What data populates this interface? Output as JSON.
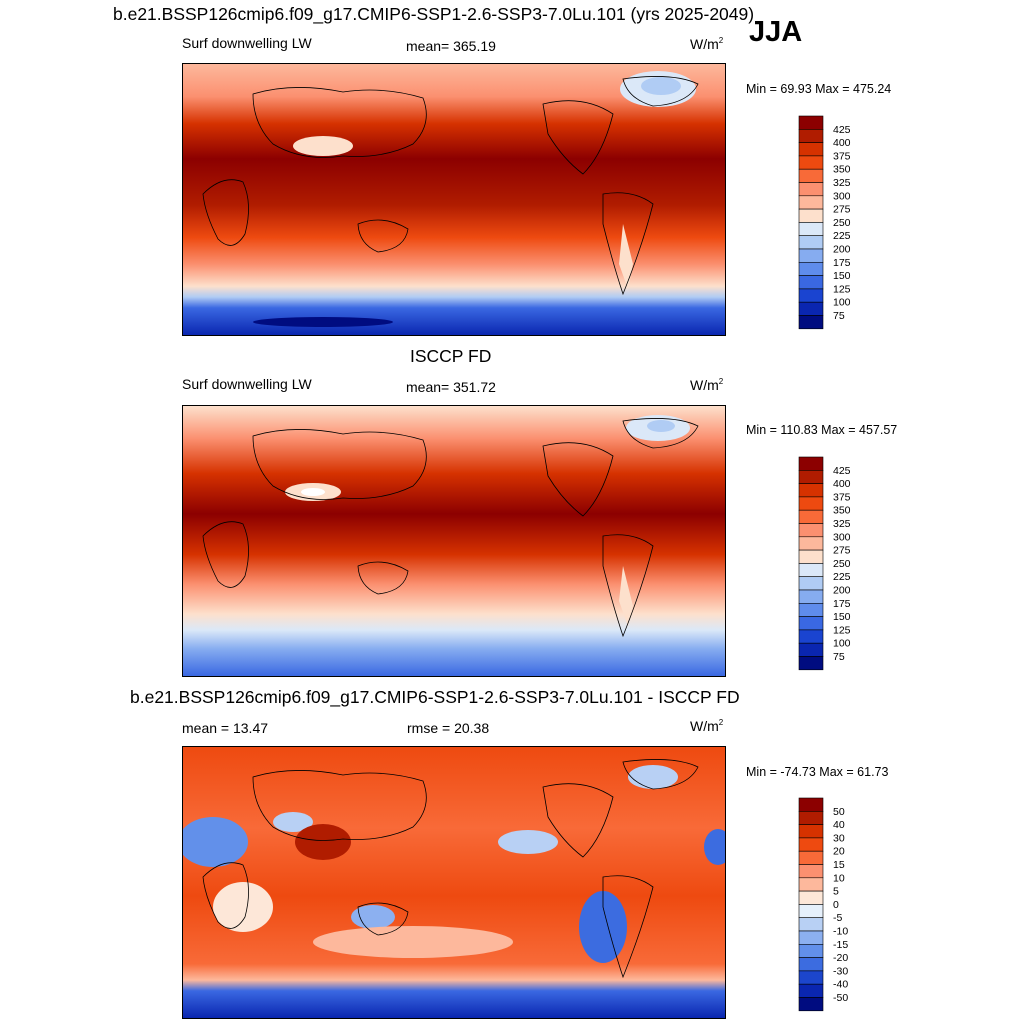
{
  "season": "JJA",
  "units": "W/m",
  "units_exp": "2",
  "panels": [
    {
      "id": "model",
      "heading": "b.e21.BSSP126cmip6.f09_g17.CMIP6-SSP1-2.6-SSP3-7.0Lu.101 (yrs 2025-2049)",
      "left_label": "Surf downwelling LW",
      "center_label": "mean= 365.19",
      "minmax": "Min =  69.93 Max = 475.24",
      "colorbar_labels": [
        "425",
        "400",
        "375",
        "350",
        "325",
        "300",
        "275",
        "250",
        "225",
        "200",
        "175",
        "150",
        "125",
        "100",
        "75"
      ]
    },
    {
      "id": "obs",
      "heading": "ISCCP FD",
      "left_label": "Surf downwelling LW",
      "center_label": "mean= 351.72",
      "minmax": "Min = 110.83 Max = 457.57",
      "colorbar_labels": [
        "425",
        "400",
        "375",
        "350",
        "325",
        "300",
        "275",
        "250",
        "225",
        "200",
        "175",
        "150",
        "125",
        "100",
        "75"
      ]
    },
    {
      "id": "diff",
      "heading": "b.e21.BSSP126cmip6.f09_g17.CMIP6-SSP1-2.6-SSP3-7.0Lu.101 - ISCCP FD",
      "left_label": "mean =  13.47",
      "center_label": "rmse =  20.38",
      "minmax": "Min = -74.73 Max =  61.73",
      "colorbar_labels": [
        "50",
        "40",
        "30",
        "20",
        "15",
        "10",
        "5",
        "0",
        "-5",
        "-10",
        "-15",
        "-20",
        "-30",
        "-40",
        "-50"
      ]
    }
  ],
  "colors": {
    "abs_scale": [
      "#8c0000",
      "#b01c00",
      "#d63200",
      "#ee4a10",
      "#f86a38",
      "#fb9070",
      "#fdb89c",
      "#fde0cc",
      "#dbe8f8",
      "#b0ccf4",
      "#86acf0",
      "#5f8cec",
      "#3a68e2",
      "#1a44d0",
      "#0a26b0",
      "#000c80"
    ],
    "diff_scale": [
      "#8c0000",
      "#b01c00",
      "#d63200",
      "#ee4a10",
      "#f86a38",
      "#fb9070",
      "#fdb89c",
      "#fde7d8",
      "#e6f0fb",
      "#b8d0f4",
      "#8cb0f0",
      "#6290ea",
      "#3c6ce0",
      "#1c46cc",
      "#0a26b0",
      "#000c80"
    ]
  }
}
